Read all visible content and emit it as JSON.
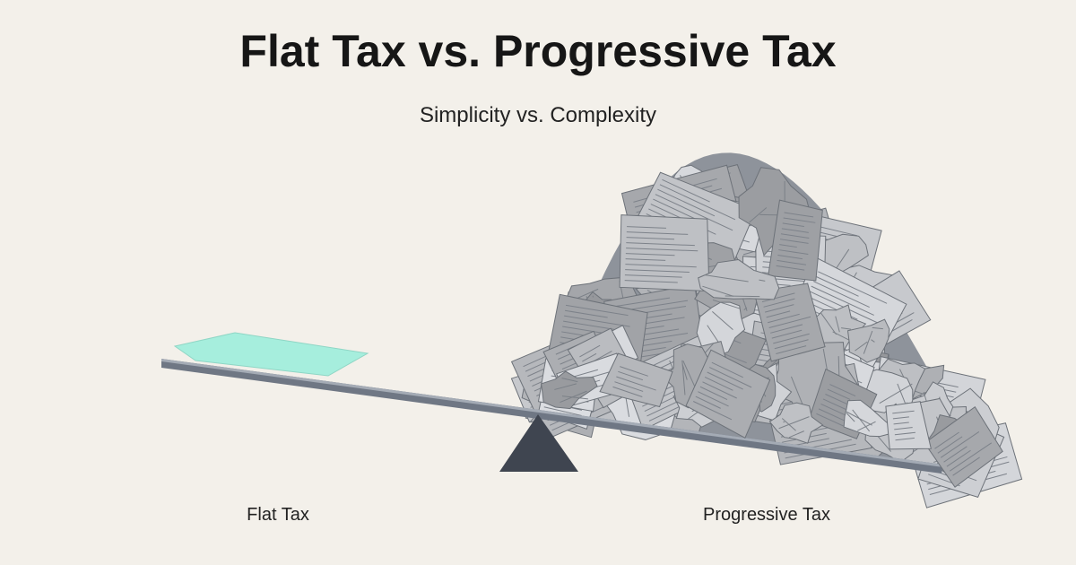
{
  "header": {
    "title": "Flat Tax vs. Progressive Tax",
    "subtitle": "Simplicity vs. Complexity"
  },
  "labels": {
    "left": "Flat Tax",
    "right": "Progressive Tax"
  }
}
